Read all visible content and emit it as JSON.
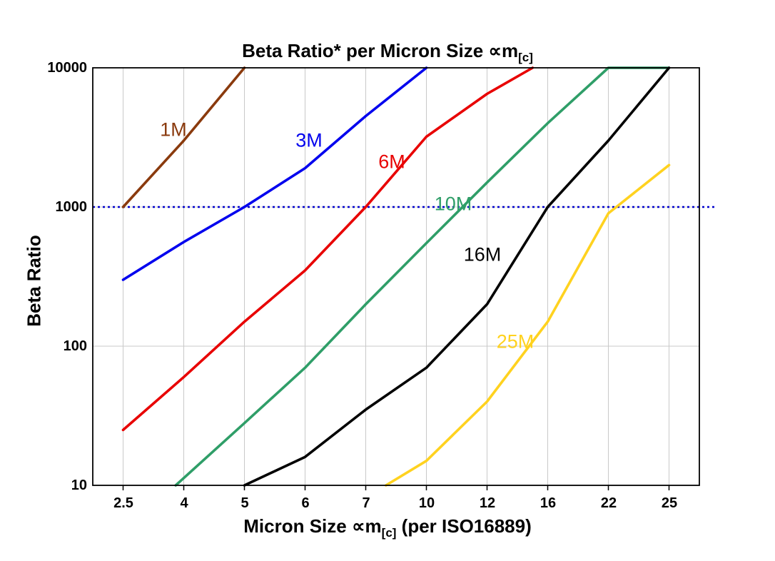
{
  "title": {
    "main": "Beta Ratio* per Micron Size ",
    "symbol": "∝m",
    "sub": "[c]"
  },
  "y_axis": {
    "label": "Beta Ratio",
    "ticks": [
      "10000",
      "1000",
      "100",
      "10"
    ]
  },
  "x_axis": {
    "label_pre": "Micron Size ",
    "symbol": "∝m",
    "sub": "[c]",
    "label_post": " (per ISO16889)",
    "ticks": [
      "2.5",
      "4",
      "5",
      "6",
      "7",
      "10",
      "12",
      "16",
      "22",
      "25"
    ]
  },
  "chart_data": {
    "type": "line",
    "title": "Beta Ratio* per Micron Size ∝m[c]",
    "xlabel": "Micron Size ∝m[c] (per ISO16889)",
    "ylabel": "Beta Ratio",
    "x_scale": "categorical",
    "y_scale": "log",
    "ylim": [
      10,
      10000
    ],
    "grid": true,
    "categories": [
      2.5,
      4,
      5,
      6,
      7,
      10,
      12,
      16,
      22,
      25
    ],
    "reference_line": {
      "y": 1000,
      "style": "dotted",
      "color": "#0000cc"
    },
    "series": [
      {
        "name": "1M",
        "color": "#8a3a0d",
        "points": [
          [
            2.5,
            1000
          ],
          [
            4,
            3000
          ],
          [
            5,
            10000
          ]
        ]
      },
      {
        "name": "3M",
        "color": "#0202ee",
        "points": [
          [
            2.5,
            300
          ],
          [
            4,
            560
          ],
          [
            5,
            1000
          ],
          [
            6,
            1900
          ],
          [
            7,
            4500
          ],
          [
            10,
            10000
          ]
        ]
      },
      {
        "name": "6M",
        "color": "#e80000",
        "points": [
          [
            2.5,
            25
          ],
          [
            4,
            60
          ],
          [
            5,
            150
          ],
          [
            6,
            350
          ],
          [
            7,
            1000
          ],
          [
            10,
            3200
          ],
          [
            12,
            6500
          ],
          [
            15,
            10000
          ]
        ]
      },
      {
        "name": "10M",
        "color": "#2f9e68",
        "points": [
          [
            3.8,
            10
          ],
          [
            5,
            28
          ],
          [
            6,
            70
          ],
          [
            7,
            200
          ],
          [
            10,
            550
          ],
          [
            12,
            1500
          ],
          [
            16,
            4000
          ],
          [
            22,
            10000
          ],
          [
            25,
            10000
          ]
        ]
      },
      {
        "name": "16M",
        "color": "#000000",
        "points": [
          [
            5,
            10
          ],
          [
            6,
            16
          ],
          [
            7,
            35
          ],
          [
            10,
            70
          ],
          [
            12,
            200
          ],
          [
            16,
            1000
          ],
          [
            22,
            3000
          ],
          [
            25,
            10000
          ]
        ]
      },
      {
        "name": "25M",
        "color": "#ffd21f",
        "points": [
          [
            8,
            10
          ],
          [
            10,
            15
          ],
          [
            12,
            40
          ],
          [
            16,
            150
          ],
          [
            22,
            900
          ],
          [
            25,
            2000
          ]
        ]
      }
    ]
  }
}
